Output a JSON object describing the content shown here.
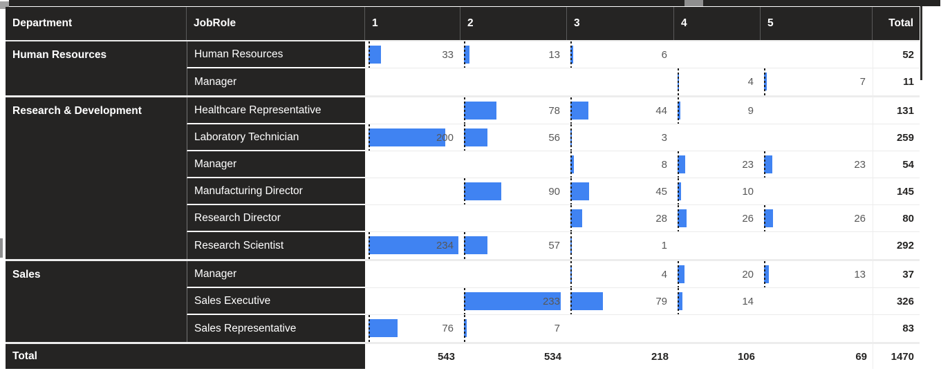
{
  "colors": {
    "header_bg": "#252423",
    "bar": "#4083F2",
    "value_text": "#575757",
    "total_text": "#252423"
  },
  "chart_data": {
    "type": "table",
    "columns": [
      "Department",
      "JobRole",
      "1",
      "2",
      "3",
      "4",
      "5",
      "Total"
    ],
    "value_columns": [
      "1",
      "2",
      "3",
      "4",
      "5"
    ],
    "bar_scale_max": 234,
    "groups": [
      {
        "department": "Human Resources",
        "rows": [
          {
            "jobrole": "Human Resources",
            "values": [
              33,
              13,
              6,
              null,
              null
            ],
            "total": 52
          },
          {
            "jobrole": "Manager",
            "values": [
              null,
              null,
              null,
              4,
              7
            ],
            "total": 11
          }
        ]
      },
      {
        "department": "Research & Development",
        "rows": [
          {
            "jobrole": "Healthcare Representative",
            "values": [
              null,
              78,
              44,
              9,
              null
            ],
            "total": 131
          },
          {
            "jobrole": "Laboratory Technician",
            "values": [
              200,
              56,
              3,
              null,
              null
            ],
            "total": 259
          },
          {
            "jobrole": "Manager",
            "values": [
              null,
              null,
              8,
              23,
              23
            ],
            "total": 54
          },
          {
            "jobrole": "Manufacturing Director",
            "values": [
              null,
              90,
              45,
              10,
              null
            ],
            "total": 145
          },
          {
            "jobrole": "Research Director",
            "values": [
              null,
              null,
              28,
              26,
              26
            ],
            "total": 80
          },
          {
            "jobrole": "Research Scientist",
            "values": [
              234,
              57,
              1,
              null,
              null
            ],
            "total": 292
          }
        ]
      },
      {
        "department": "Sales",
        "rows": [
          {
            "jobrole": "Manager",
            "values": [
              null,
              null,
              4,
              20,
              13
            ],
            "total": 37
          },
          {
            "jobrole": "Sales Executive",
            "values": [
              null,
              233,
              79,
              14,
              null
            ],
            "total": 326
          },
          {
            "jobrole": "Sales Representative",
            "values": [
              76,
              7,
              null,
              null,
              null
            ],
            "total": 83
          }
        ]
      }
    ],
    "grand_total": {
      "label": "Total",
      "values": [
        543,
        534,
        218,
        106,
        69
      ],
      "total": 1470
    }
  }
}
